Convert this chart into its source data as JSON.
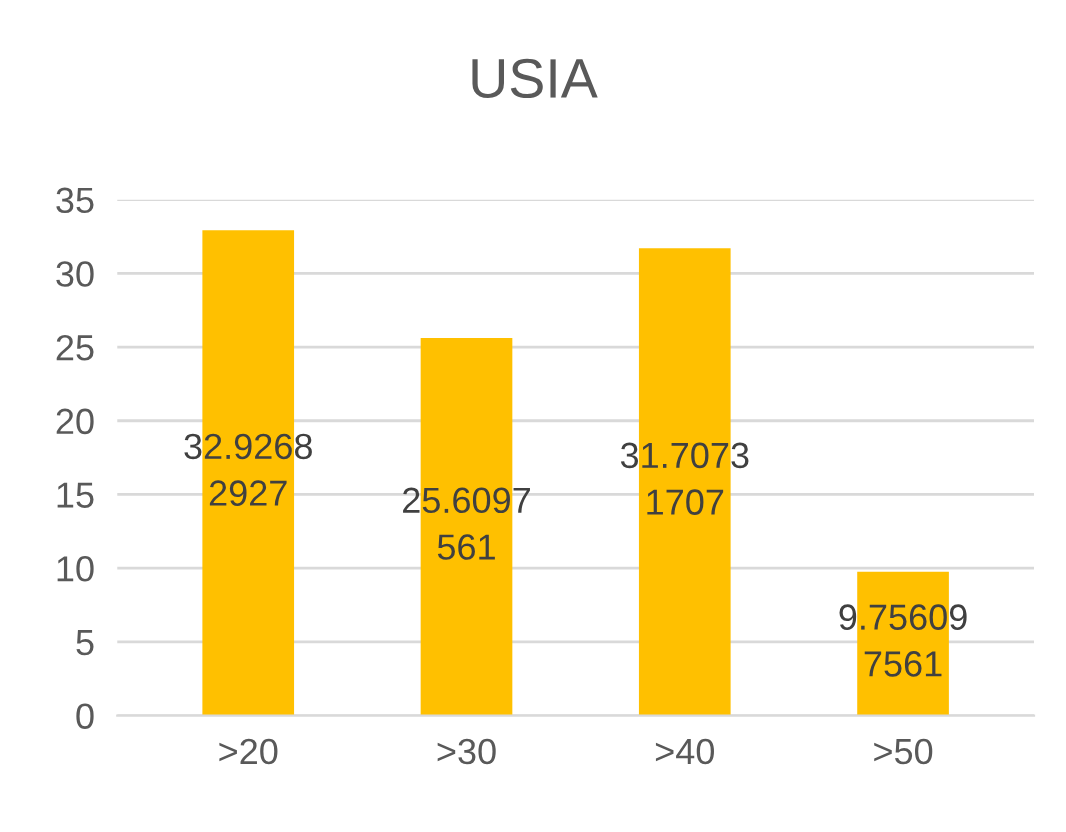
{
  "chart_data": {
    "type": "bar",
    "title": "USIA",
    "categories": [
      ">20",
      ">30",
      ">40",
      ">50"
    ],
    "values": [
      32.92682927,
      25.6097561,
      31.70731707,
      9.756097561
    ],
    "value_labels": [
      "32.92682927",
      "25.6097561",
      "31.70731707",
      "9.756097561"
    ],
    "color": "#ffc000",
    "ylim": [
      0,
      35
    ],
    "yticks": [
      0,
      5,
      10,
      15,
      20,
      25,
      30,
      35
    ],
    "grid": "y",
    "legend": false
  }
}
